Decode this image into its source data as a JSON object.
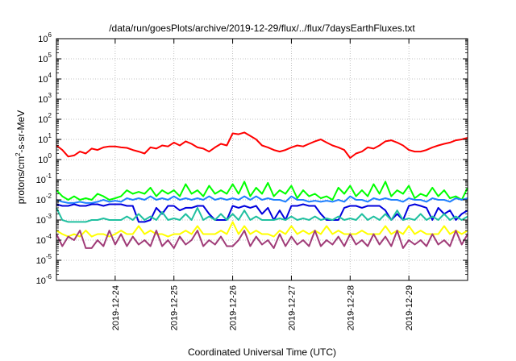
{
  "chart_data": {
    "type": "line",
    "title": "/data/run/goesPlots/archive/2019-12-29/flux/../flux/7daysEarthFluxes.txt",
    "xlabel": "Coordinated Universal Time (UTC)",
    "ylabel": {
      "base": "protons/cm",
      "exp": "2",
      "rest": "-s-sr-MeV"
    },
    "y_scale": "log",
    "ylim": [
      1e-06,
      1000000.0
    ],
    "y_ticks": [
      {
        "base": "10",
        "exp": "-6",
        "value": -6
      },
      {
        "base": "10",
        "exp": "-5",
        "value": -5
      },
      {
        "base": "10",
        "exp": "-4",
        "value": -4
      },
      {
        "base": "10",
        "exp": "-3",
        "value": -3
      },
      {
        "base": "10",
        "exp": "-2",
        "value": -2
      },
      {
        "base": "10",
        "exp": "-1",
        "value": -1
      },
      {
        "base": "10",
        "exp": "0",
        "value": 0
      },
      {
        "base": "10",
        "exp": "1",
        "value": 1
      },
      {
        "base": "10",
        "exp": "2",
        "value": 2
      },
      {
        "base": "10",
        "exp": "3",
        "value": 3
      },
      {
        "base": "10",
        "exp": "4",
        "value": 4
      },
      {
        "base": "10",
        "exp": "5",
        "value": 5
      },
      {
        "base": "10",
        "exp": "6",
        "value": 6
      }
    ],
    "xlim": [
      0,
      7
    ],
    "x_ticks": [
      {
        "label": "2019-12-24",
        "pos": 1.0
      },
      {
        "label": "2019-12-25",
        "pos": 2.0
      },
      {
        "label": "2019-12-26",
        "pos": 3.0
      },
      {
        "label": "2019-12-27",
        "pos": 4.0
      },
      {
        "label": "2019-12-28",
        "pos": 5.0
      },
      {
        "label": "2019-12-29",
        "pos": 6.0
      }
    ],
    "grid": true,
    "series": [
      {
        "color": "#ff0000",
        "x": [
          0.0,
          0.1,
          0.2,
          0.3,
          0.4,
          0.5,
          0.6,
          0.7,
          0.8,
          0.9,
          1.0,
          1.1,
          1.2,
          1.3,
          1.4,
          1.5,
          1.6,
          1.7,
          1.8,
          1.9,
          2.0,
          2.1,
          2.2,
          2.3,
          2.4,
          2.5,
          2.6,
          2.7,
          2.8,
          2.9,
          3.0,
          3.1,
          3.2,
          3.3,
          3.4,
          3.5,
          3.6,
          3.7,
          3.8,
          3.9,
          4.0,
          4.1,
          4.2,
          4.3,
          4.4,
          4.5,
          4.6,
          4.7,
          4.8,
          4.9,
          5.0,
          5.1,
          5.2,
          5.3,
          5.4,
          5.5,
          5.6,
          5.7,
          5.8,
          5.9,
          6.0,
          6.1,
          6.2,
          6.3,
          6.4,
          6.5,
          6.6,
          6.7,
          6.8,
          6.9,
          7.0
        ],
        "y": [
          5.0,
          3.0,
          1.4,
          1.6,
          2.5,
          2.0,
          3.5,
          3.0,
          4.0,
          4.5,
          4.5,
          4.0,
          3.8,
          3.0,
          2.5,
          2.0,
          4.0,
          3.5,
          5.0,
          4.5,
          7.0,
          5.0,
          8.0,
          6.0,
          4.0,
          3.5,
          2.5,
          4.0,
          6.0,
          5.0,
          20.0,
          18.0,
          22.0,
          15.0,
          10.0,
          5.0,
          4.0,
          3.0,
          2.5,
          3.0,
          4.0,
          5.0,
          4.5,
          6.0,
          8.0,
          10.0,
          7.0,
          5.0,
          4.0,
          3.0,
          1.2,
          2.0,
          2.5,
          4.0,
          3.5,
          5.0,
          8.0,
          9.0,
          7.0,
          5.0,
          3.0,
          2.5,
          2.5,
          3.0,
          4.0,
          5.0,
          6.0,
          7.0,
          9.0,
          10.0,
          12.0
        ]
      },
      {
        "color": "#00ff00",
        "x": [
          0.0,
          0.1,
          0.2,
          0.3,
          0.4,
          0.5,
          0.6,
          0.7,
          0.8,
          0.9,
          1.0,
          1.1,
          1.2,
          1.3,
          1.4,
          1.5,
          1.6,
          1.7,
          1.8,
          1.9,
          2.0,
          2.1,
          2.2,
          2.3,
          2.4,
          2.5,
          2.6,
          2.7,
          2.8,
          2.9,
          3.0,
          3.1,
          3.2,
          3.3,
          3.4,
          3.5,
          3.6,
          3.7,
          3.8,
          3.9,
          4.0,
          4.1,
          4.2,
          4.3,
          4.4,
          4.5,
          4.6,
          4.7,
          4.8,
          4.9,
          5.0,
          5.1,
          5.2,
          5.3,
          5.4,
          5.5,
          5.6,
          5.7,
          5.8,
          5.9,
          6.0,
          6.1,
          6.2,
          6.3,
          6.4,
          6.5,
          6.6,
          6.7,
          6.8,
          6.9,
          7.0
        ],
        "y": [
          0.03,
          0.015,
          0.01,
          0.015,
          0.01,
          0.012,
          0.01,
          0.02,
          0.015,
          0.01,
          0.012,
          0.015,
          0.03,
          0.02,
          0.025,
          0.02,
          0.04,
          0.015,
          0.03,
          0.02,
          0.03,
          0.015,
          0.06,
          0.02,
          0.03,
          0.015,
          0.05,
          0.02,
          0.03,
          0.02,
          0.06,
          0.02,
          0.08,
          0.015,
          0.04,
          0.02,
          0.07,
          0.015,
          0.03,
          0.02,
          0.05,
          0.012,
          0.03,
          0.015,
          0.02,
          0.012,
          0.015,
          0.01,
          0.04,
          0.02,
          0.05,
          0.015,
          0.03,
          0.015,
          0.06,
          0.02,
          0.08,
          0.015,
          0.03,
          0.02,
          0.05,
          0.012,
          0.02,
          0.015,
          0.04,
          0.015,
          0.03,
          0.012,
          0.015,
          0.01,
          0.04
        ]
      },
      {
        "color": "#2080ff",
        "x": [
          0.0,
          0.1,
          0.2,
          0.3,
          0.4,
          0.5,
          0.6,
          0.7,
          0.8,
          0.9,
          1.0,
          1.1,
          1.2,
          1.3,
          1.4,
          1.5,
          1.6,
          1.7,
          1.8,
          1.9,
          2.0,
          2.1,
          2.2,
          2.3,
          2.4,
          2.5,
          2.6,
          2.7,
          2.8,
          2.9,
          3.0,
          3.1,
          3.2,
          3.3,
          3.4,
          3.5,
          3.6,
          3.7,
          3.8,
          3.9,
          4.0,
          4.1,
          4.2,
          4.3,
          4.4,
          4.5,
          4.6,
          4.7,
          4.8,
          4.9,
          5.0,
          5.1,
          5.2,
          5.3,
          5.4,
          5.5,
          5.6,
          5.7,
          5.8,
          5.9,
          6.0,
          6.1,
          6.2,
          6.3,
          6.4,
          6.5,
          6.6,
          6.7,
          6.8,
          6.9,
          7.0
        ],
        "y": [
          0.01,
          0.008,
          0.007,
          0.007,
          0.008,
          0.007,
          0.007,
          0.008,
          0.01,
          0.008,
          0.009,
          0.008,
          0.012,
          0.01,
          0.012,
          0.01,
          0.015,
          0.01,
          0.012,
          0.01,
          0.015,
          0.01,
          0.012,
          0.01,
          0.012,
          0.01,
          0.015,
          0.01,
          0.012,
          0.01,
          0.012,
          0.01,
          0.015,
          0.01,
          0.015,
          0.01,
          0.012,
          0.01,
          0.01,
          0.008,
          0.015,
          0.01,
          0.01,
          0.008,
          0.009,
          0.008,
          0.009,
          0.008,
          0.01,
          0.008,
          0.015,
          0.01,
          0.01,
          0.008,
          0.012,
          0.01,
          0.012,
          0.01,
          0.01,
          0.008,
          0.012,
          0.01,
          0.01,
          0.008,
          0.012,
          0.01,
          0.01,
          0.008,
          0.012,
          0.01,
          0.012
        ]
      },
      {
        "color": "#0000dd",
        "x": [
          0.0,
          0.1,
          0.2,
          0.3,
          0.4,
          0.5,
          0.6,
          0.7,
          0.8,
          0.9,
          1.0,
          1.1,
          1.2,
          1.3,
          1.4,
          1.5,
          1.6,
          1.7,
          1.8,
          1.9,
          2.0,
          2.1,
          2.2,
          2.3,
          2.4,
          2.5,
          2.6,
          2.7,
          2.8,
          2.9,
          3.0,
          3.1,
          3.2,
          3.3,
          3.4,
          3.5,
          3.6,
          3.7,
          3.8,
          3.9,
          4.0,
          4.1,
          4.2,
          4.3,
          4.4,
          4.5,
          4.6,
          4.7,
          4.8,
          4.9,
          5.0,
          5.1,
          5.2,
          5.3,
          5.4,
          5.5,
          5.6,
          5.7,
          5.8,
          5.9,
          6.0,
          6.1,
          6.2,
          6.3,
          6.4,
          6.5,
          6.6,
          6.7,
          6.8,
          6.9,
          7.0
        ],
        "y": [
          0.006,
          0.005,
          0.005,
          0.006,
          0.005,
          0.005,
          0.006,
          0.006,
          0.005,
          0.006,
          0.006,
          0.006,
          0.005,
          0.005,
          0.0008,
          0.0008,
          0.001,
          0.004,
          0.002,
          0.005,
          0.005,
          0.003,
          0.004,
          0.004,
          0.005,
          0.005,
          0.002,
          0.001,
          0.001,
          0.001,
          0.005,
          0.004,
          0.005,
          0.004,
          0.005,
          0.002,
          0.004,
          0.001,
          0.003,
          0.001,
          0.005,
          0.005,
          0.006,
          0.005,
          0.005,
          0.002,
          0.001,
          0.001,
          0.001,
          0.004,
          0.005,
          0.005,
          0.004,
          0.005,
          0.005,
          0.005,
          0.003,
          0.001,
          0.002,
          0.001,
          0.005,
          0.006,
          0.005,
          0.004,
          0.001,
          0.004,
          0.002,
          0.003,
          0.001,
          0.002,
          0.003
        ]
      },
      {
        "color": "#20c0a0",
        "x": [
          0.0,
          0.1,
          0.2,
          0.3,
          0.4,
          0.5,
          0.6,
          0.7,
          0.8,
          0.9,
          1.0,
          1.1,
          1.2,
          1.3,
          1.4,
          1.5,
          1.6,
          1.7,
          1.8,
          1.9,
          2.0,
          2.1,
          2.2,
          2.3,
          2.4,
          2.5,
          2.6,
          2.7,
          2.8,
          2.9,
          3.0,
          3.1,
          3.2,
          3.3,
          3.4,
          3.5,
          3.6,
          3.7,
          3.8,
          3.9,
          4.0,
          4.1,
          4.2,
          4.3,
          4.4,
          4.5,
          4.6,
          4.7,
          4.8,
          4.9,
          5.0,
          5.1,
          5.2,
          5.3,
          5.4,
          5.5,
          5.6,
          5.7,
          5.8,
          5.9,
          6.0,
          6.1,
          6.2,
          6.3,
          6.4,
          6.5,
          6.6,
          6.7,
          6.8,
          6.9,
          7.0
        ],
        "y": [
          0.004,
          0.001,
          0.0008,
          0.0008,
          0.0008,
          0.0008,
          0.001,
          0.001,
          0.0012,
          0.001,
          0.001,
          0.001,
          0.0015,
          0.001,
          0.002,
          0.001,
          0.0015,
          0.001,
          0.0025,
          0.001,
          0.0012,
          0.001,
          0.002,
          0.001,
          0.004,
          0.001,
          0.0015,
          0.001,
          0.002,
          0.001,
          0.002,
          0.001,
          0.003,
          0.001,
          0.0015,
          0.001,
          0.001,
          0.001,
          0.0012,
          0.001,
          0.0015,
          0.001,
          0.0012,
          0.001,
          0.0015,
          0.001,
          0.0012,
          0.001,
          0.0015,
          0.001,
          0.0012,
          0.001,
          0.002,
          0.001,
          0.0015,
          0.001,
          0.002,
          0.001,
          0.003,
          0.001,
          0.0012,
          0.001,
          0.002,
          0.001,
          0.0015,
          0.001,
          0.002,
          0.001,
          0.0015,
          0.001,
          0.0015
        ]
      },
      {
        "color": "#ffff00",
        "x": [
          0.0,
          0.1,
          0.2,
          0.3,
          0.4,
          0.5,
          0.6,
          0.7,
          0.8,
          0.9,
          1.0,
          1.1,
          1.2,
          1.3,
          1.4,
          1.5,
          1.6,
          1.7,
          1.8,
          1.9,
          2.0,
          2.1,
          2.2,
          2.3,
          2.4,
          2.5,
          2.6,
          2.7,
          2.8,
          2.9,
          3.0,
          3.1,
          3.2,
          3.3,
          3.4,
          3.5,
          3.6,
          3.7,
          3.8,
          3.9,
          4.0,
          4.1,
          4.2,
          4.3,
          4.4,
          4.5,
          4.6,
          4.7,
          4.8,
          4.9,
          5.0,
          5.1,
          5.2,
          5.3,
          5.4,
          5.5,
          5.6,
          5.7,
          5.8,
          5.9,
          6.0,
          6.1,
          6.2,
          6.3,
          6.4,
          6.5,
          6.6,
          6.7,
          6.8,
          6.9,
          7.0
        ],
        "y": [
          0.0003,
          0.0002,
          0.00015,
          0.0002,
          0.00015,
          0.0003,
          0.00015,
          0.0002,
          0.0002,
          0.00015,
          0.0002,
          0.0003,
          0.0002,
          0.0002,
          0.0005,
          0.0002,
          0.0003,
          0.0002,
          0.0002,
          0.00015,
          0.0002,
          0.0002,
          0.0003,
          0.0002,
          0.0005,
          0.0002,
          0.0002,
          0.0002,
          0.0003,
          0.0002,
          0.0008,
          0.0002,
          0.0005,
          0.0002,
          0.0003,
          0.0002,
          0.0002,
          0.00015,
          0.0003,
          0.0002,
          0.0005,
          0.0002,
          0.0003,
          0.0002,
          0.0003,
          0.0002,
          0.0005,
          0.0002,
          0.0003,
          0.0002,
          0.0002,
          0.0002,
          0.0003,
          0.0002,
          0.0002,
          0.0002,
          0.0005,
          0.0002,
          0.0003,
          0.0002,
          0.0005,
          0.0002,
          0.0003,
          0.0002,
          0.0002,
          0.0002,
          0.0005,
          0.0002,
          0.0003,
          0.0002,
          0.0003
        ]
      },
      {
        "color": "#a03c78",
        "x": [
          0.0,
          0.1,
          0.2,
          0.3,
          0.4,
          0.5,
          0.6,
          0.7,
          0.8,
          0.9,
          1.0,
          1.1,
          1.2,
          1.3,
          1.4,
          1.5,
          1.6,
          1.7,
          1.8,
          1.9,
          2.0,
          2.1,
          2.2,
          2.3,
          2.4,
          2.5,
          2.6,
          2.7,
          2.8,
          2.9,
          3.0,
          3.1,
          3.2,
          3.3,
          3.4,
          3.5,
          3.6,
          3.7,
          3.8,
          3.9,
          4.0,
          4.1,
          4.2,
          4.3,
          4.4,
          4.5,
          4.6,
          4.7,
          4.8,
          4.9,
          5.0,
          5.1,
          5.2,
          5.3,
          5.4,
          5.5,
          5.6,
          5.7,
          5.8,
          5.9,
          6.0,
          6.1,
          6.2,
          6.3,
          6.4,
          6.5,
          6.6,
          6.7,
          6.8,
          6.9,
          7.0
        ],
        "y": [
          0.0002,
          5e-05,
          0.00015,
          0.0001,
          0.0003,
          4e-05,
          4e-05,
          0.0001,
          5e-05,
          0.0003,
          6e-05,
          0.0002,
          5e-05,
          0.00015,
          6e-05,
          0.0001,
          5e-05,
          0.0003,
          5e-05,
          0.0001,
          4e-05,
          0.00015,
          6e-05,
          0.0001,
          0.0003,
          5e-05,
          0.0001,
          6e-05,
          0.00015,
          5e-05,
          5e-05,
          0.0001,
          0.0003,
          5e-05,
          0.00015,
          6e-05,
          0.0001,
          4e-05,
          0.0002,
          5e-05,
          0.00015,
          6e-05,
          0.0001,
          5e-05,
          0.0003,
          5e-05,
          0.0001,
          6e-05,
          0.00015,
          5e-05,
          0.0002,
          6e-05,
          0.0001,
          5e-05,
          0.0002,
          6e-05,
          0.00015,
          5e-05,
          0.0003,
          4e-05,
          0.0001,
          6e-05,
          0.0001,
          5e-05,
          0.0002,
          6e-05,
          0.0001,
          5e-05,
          0.0003,
          6e-05,
          0.0002
        ]
      }
    ]
  }
}
